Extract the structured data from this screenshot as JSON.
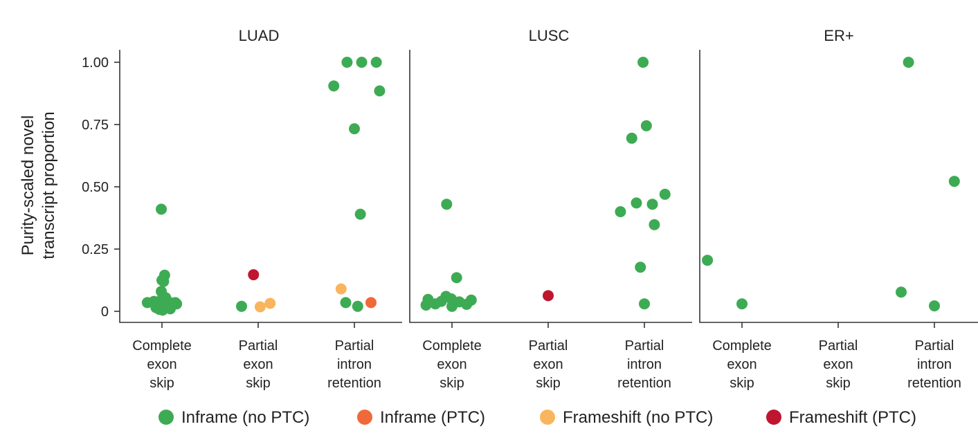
{
  "chart_data": {
    "type": "scatter",
    "ylabel": "Purity-scaled novel transcript proportion",
    "ylim": [
      0,
      1.0
    ],
    "yticks": [
      {
        "value": 0,
        "label": "0"
      },
      {
        "value": 0.25,
        "label": "0.25"
      },
      {
        "value": 0.5,
        "label": "0.50"
      },
      {
        "value": 0.75,
        "label": "0.75"
      },
      {
        "value": 1.0,
        "label": "1.00"
      }
    ],
    "categories": [
      {
        "key": "complete",
        "label": "Complete exon skip",
        "lines": [
          "Complete",
          "exon",
          "skip"
        ]
      },
      {
        "key": "partial_exon",
        "label": "Partial exon skip",
        "lines": [
          "Partial",
          "exon",
          "skip"
        ]
      },
      {
        "key": "partial_intron",
        "label": "Partial intron retention",
        "lines": [
          "Partial",
          "intron",
          "retention"
        ]
      }
    ],
    "legend": [
      {
        "key": "inframe_no_ptc",
        "label": "Inframe (no PTC)",
        "color": "#3dab54"
      },
      {
        "key": "inframe_ptc",
        "label": "Inframe (PTC)",
        "color": "#f0693a"
      },
      {
        "key": "frameshift_no_ptc",
        "label": "Frameshift (no PTC)",
        "color": "#f9b55e"
      },
      {
        "key": "frameshift_ptc",
        "label": "Frameshift (PTC)",
        "color": "#c0152f"
      }
    ],
    "panels": [
      {
        "title": "LUAD",
        "points": [
          {
            "cat": "complete",
            "y": 0.41,
            "type": "inframe_no_ptc",
            "jitter": -0.02
          },
          {
            "cat": "complete",
            "y": 0.145,
            "type": "inframe_no_ptc",
            "jitter": 0.08
          },
          {
            "cat": "complete",
            "y": 0.125,
            "type": "inframe_no_ptc",
            "jitter": 0.0
          },
          {
            "cat": "complete",
            "y": 0.12,
            "type": "inframe_no_ptc",
            "jitter": 0.05
          },
          {
            "cat": "complete",
            "y": 0.08,
            "type": "inframe_no_ptc",
            "jitter": -0.02
          },
          {
            "cat": "complete",
            "y": 0.055,
            "type": "inframe_no_ptc",
            "jitter": 0.11
          },
          {
            "cat": "complete",
            "y": 0.05,
            "type": "inframe_no_ptc",
            "jitter": 0.0
          },
          {
            "cat": "complete",
            "y": 0.04,
            "type": "inframe_no_ptc",
            "jitter": -0.24
          },
          {
            "cat": "complete",
            "y": 0.038,
            "type": "inframe_no_ptc",
            "jitter": 0.2
          },
          {
            "cat": "complete",
            "y": 0.035,
            "type": "inframe_no_ptc",
            "jitter": -0.44
          },
          {
            "cat": "complete",
            "y": 0.035,
            "type": "inframe_no_ptc",
            "jitter": 0.4
          },
          {
            "cat": "complete",
            "y": 0.032,
            "type": "inframe_no_ptc",
            "jitter": 0.05
          },
          {
            "cat": "complete",
            "y": 0.03,
            "type": "inframe_no_ptc",
            "jitter": -0.12
          },
          {
            "cat": "complete",
            "y": 0.03,
            "type": "inframe_no_ptc",
            "jitter": 0.44
          },
          {
            "cat": "complete",
            "y": 0.025,
            "type": "inframe_no_ptc",
            "jitter": -0.06
          },
          {
            "cat": "complete",
            "y": 0.02,
            "type": "inframe_no_ptc",
            "jitter": 0.16
          },
          {
            "cat": "complete",
            "y": 0.015,
            "type": "inframe_no_ptc",
            "jitter": -0.18
          },
          {
            "cat": "complete",
            "y": 0.012,
            "type": "inframe_no_ptc",
            "jitter": 0.06
          },
          {
            "cat": "complete",
            "y": 0.01,
            "type": "inframe_no_ptc",
            "jitter": 0.25
          },
          {
            "cat": "complete",
            "y": 0.008,
            "type": "inframe_no_ptc",
            "jitter": -0.08
          },
          {
            "cat": "complete",
            "y": 0.005,
            "type": "inframe_no_ptc",
            "jitter": 0.02
          },
          {
            "cat": "partial_exon",
            "y": 0.147,
            "type": "frameshift_ptc",
            "jitter": -0.14
          },
          {
            "cat": "partial_exon",
            "y": 0.02,
            "type": "inframe_no_ptc",
            "jitter": -0.5
          },
          {
            "cat": "partial_exon",
            "y": 0.018,
            "type": "frameshift_no_ptc",
            "jitter": 0.06
          },
          {
            "cat": "partial_exon",
            "y": 0.032,
            "type": "frameshift_no_ptc",
            "jitter": 0.36
          },
          {
            "cat": "partial_intron",
            "y": 1.0,
            "type": "inframe_no_ptc",
            "jitter": -0.22
          },
          {
            "cat": "partial_intron",
            "y": 1.0,
            "type": "inframe_no_ptc",
            "jitter": 0.22
          },
          {
            "cat": "partial_intron",
            "y": 1.0,
            "type": "inframe_no_ptc",
            "jitter": 0.66
          },
          {
            "cat": "partial_intron",
            "y": 0.905,
            "type": "inframe_no_ptc",
            "jitter": -0.62
          },
          {
            "cat": "partial_intron",
            "y": 0.885,
            "type": "inframe_no_ptc",
            "jitter": 0.76
          },
          {
            "cat": "partial_intron",
            "y": 0.733,
            "type": "inframe_no_ptc",
            "jitter": 0.0
          },
          {
            "cat": "partial_intron",
            "y": 0.39,
            "type": "inframe_no_ptc",
            "jitter": 0.18
          },
          {
            "cat": "partial_intron",
            "y": 0.09,
            "type": "frameshift_no_ptc",
            "jitter": -0.4
          },
          {
            "cat": "partial_intron",
            "y": 0.035,
            "type": "inframe_no_ptc",
            "jitter": -0.26
          },
          {
            "cat": "partial_intron",
            "y": 0.035,
            "type": "inframe_ptc",
            "jitter": 0.5
          },
          {
            "cat": "partial_intron",
            "y": 0.02,
            "type": "inframe_no_ptc",
            "jitter": 0.1
          }
        ]
      },
      {
        "title": "LUSC",
        "points": [
          {
            "cat": "complete",
            "y": 0.43,
            "type": "inframe_no_ptc",
            "jitter": -0.16
          },
          {
            "cat": "complete",
            "y": 0.135,
            "type": "inframe_no_ptc",
            "jitter": 0.14
          },
          {
            "cat": "complete",
            "y": 0.06,
            "type": "inframe_no_ptc",
            "jitter": -0.18
          },
          {
            "cat": "complete",
            "y": 0.05,
            "type": "inframe_no_ptc",
            "jitter": -0.02
          },
          {
            "cat": "complete",
            "y": 0.048,
            "type": "inframe_no_ptc",
            "jitter": -0.72
          },
          {
            "cat": "complete",
            "y": 0.045,
            "type": "inframe_no_ptc",
            "jitter": 0.58
          },
          {
            "cat": "complete",
            "y": 0.04,
            "type": "inframe_no_ptc",
            "jitter": -0.32
          },
          {
            "cat": "complete",
            "y": 0.038,
            "type": "inframe_no_ptc",
            "jitter": 0.22
          },
          {
            "cat": "complete",
            "y": 0.03,
            "type": "inframe_no_ptc",
            "jitter": -0.5
          },
          {
            "cat": "complete",
            "y": 0.028,
            "type": "inframe_no_ptc",
            "jitter": 0.44
          },
          {
            "cat": "complete",
            "y": 0.025,
            "type": "inframe_no_ptc",
            "jitter": -0.78
          },
          {
            "cat": "complete",
            "y": 0.02,
            "type": "inframe_no_ptc",
            "jitter": 0.0
          },
          {
            "cat": "partial_exon",
            "y": 0.063,
            "type": "frameshift_ptc",
            "jitter": 0.0
          },
          {
            "cat": "partial_intron",
            "y": 1.0,
            "type": "inframe_no_ptc",
            "jitter": -0.04
          },
          {
            "cat": "partial_intron",
            "y": 0.745,
            "type": "inframe_no_ptc",
            "jitter": 0.06
          },
          {
            "cat": "partial_intron",
            "y": 0.695,
            "type": "inframe_no_ptc",
            "jitter": -0.38
          },
          {
            "cat": "partial_intron",
            "y": 0.47,
            "type": "inframe_no_ptc",
            "jitter": 0.62
          },
          {
            "cat": "partial_intron",
            "y": 0.435,
            "type": "inframe_no_ptc",
            "jitter": -0.24
          },
          {
            "cat": "partial_intron",
            "y": 0.43,
            "type": "inframe_no_ptc",
            "jitter": 0.24
          },
          {
            "cat": "partial_intron",
            "y": 0.4,
            "type": "inframe_no_ptc",
            "jitter": -0.72
          },
          {
            "cat": "partial_intron",
            "y": 0.348,
            "type": "inframe_no_ptc",
            "jitter": 0.3
          },
          {
            "cat": "partial_intron",
            "y": 0.177,
            "type": "inframe_no_ptc",
            "jitter": -0.12
          },
          {
            "cat": "partial_intron",
            "y": 0.03,
            "type": "inframe_no_ptc",
            "jitter": 0.0
          }
        ]
      },
      {
        "title": "ER+",
        "points": [
          {
            "cat": "complete",
            "y": 0.205,
            "type": "inframe_no_ptc",
            "jitter": -1.04
          },
          {
            "cat": "complete",
            "y": 0.03,
            "type": "inframe_no_ptc",
            "jitter": 0.0
          },
          {
            "cat": "partial_intron",
            "y": 1.0,
            "type": "inframe_no_ptc",
            "jitter": -0.78
          },
          {
            "cat": "partial_intron",
            "y": 0.522,
            "type": "inframe_no_ptc",
            "jitter": 0.6
          },
          {
            "cat": "partial_intron",
            "y": 0.077,
            "type": "inframe_no_ptc",
            "jitter": -1.0
          },
          {
            "cat": "partial_intron",
            "y": 0.022,
            "type": "inframe_no_ptc",
            "jitter": 0.0
          }
        ]
      }
    ]
  }
}
